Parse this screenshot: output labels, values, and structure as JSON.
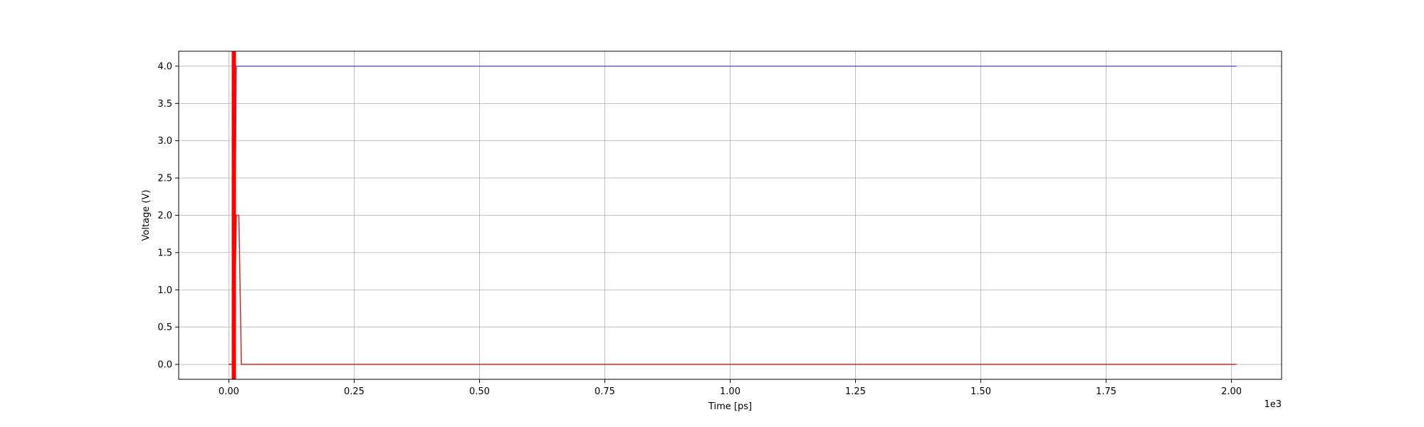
{
  "chart_data": {
    "type": "line",
    "xlabel": "Time [ps]",
    "ylabel": "Voltage (V)",
    "x_offset_text": "1e3",
    "xlim": [
      -100,
      2100
    ],
    "ylim": [
      -0.2,
      4.2
    ],
    "x_ticks": [
      0,
      250,
      500,
      750,
      1000,
      1250,
      1500,
      1750,
      2000
    ],
    "x_tick_labels": [
      "0.00",
      "0.25",
      "0.50",
      "0.75",
      "1.00",
      "1.25",
      "1.50",
      "1.75",
      "2.00"
    ],
    "y_ticks": [
      0,
      0.5,
      1,
      1.5,
      2,
      2.5,
      3,
      3.5,
      4
    ],
    "y_tick_labels": [
      "0.0",
      "0.5",
      "1.0",
      "1.5",
      "2.0",
      "2.5",
      "3.0",
      "3.5",
      "4.0"
    ],
    "grid": true,
    "series": [
      {
        "color": "#6a5acd",
        "line_width": 1.5,
        "x": [
          0,
          10,
          15,
          2010
        ],
        "y": [
          0,
          0,
          4.0,
          4.0
        ]
      },
      {
        "color": "#d62728",
        "line_width": 1.5,
        "x": [
          0,
          10,
          15,
          20,
          25,
          2010
        ],
        "y": [
          0,
          0,
          2.0,
          2.0,
          0,
          0
        ]
      },
      {
        "color": "#ff0000",
        "line_width": 6,
        "x": [
          10,
          10
        ],
        "y": [
          -0.2,
          4.2
        ]
      }
    ]
  }
}
